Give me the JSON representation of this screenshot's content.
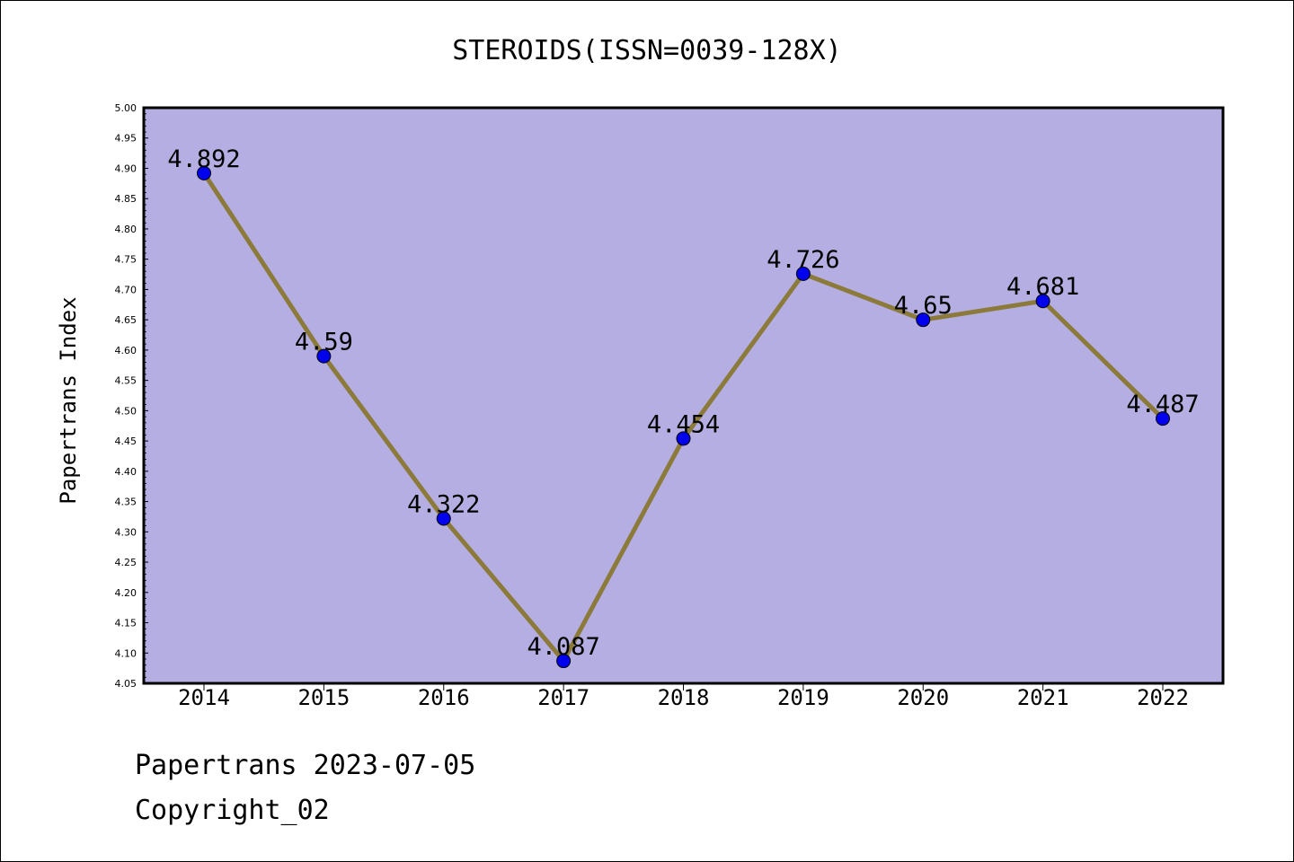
{
  "chart_data": {
    "type": "line",
    "title": "STEROIDS(ISSN=0039-128X)",
    "ylabel": "Papertrans Index",
    "xlabel": "",
    "categories": [
      "2014",
      "2015",
      "2016",
      "2017",
      "2018",
      "2019",
      "2020",
      "2021",
      "2022"
    ],
    "series": [
      {
        "values": [
          4.892,
          4.59,
          4.322,
          4.087,
          4.454,
          4.726,
          4.65,
          4.681,
          4.487
        ],
        "labels": [
          "4.892",
          "4.59",
          "4.322",
          "4.087",
          "4.454",
          "4.726",
          "4.65",
          "4.681",
          "4.487"
        ]
      }
    ],
    "ylim": [
      4.05,
      5.0
    ],
    "yticks": [
      "4.05",
      "4.10",
      "4.15",
      "4.20",
      "4.25",
      "4.30",
      "4.35",
      "4.40",
      "4.45",
      "4.50",
      "4.55",
      "4.60",
      "4.65",
      "4.70",
      "4.75",
      "4.80",
      "4.85",
      "4.90",
      "4.95",
      "5.00"
    ],
    "grid": false,
    "legend": "none",
    "colors": {
      "plot_background": "#b5aee2",
      "line": "#8b7a3a",
      "marker": "#0000ee"
    }
  },
  "footer": {
    "line1": "Papertrans 2023-07-05",
    "line2": "Copyright_02"
  }
}
